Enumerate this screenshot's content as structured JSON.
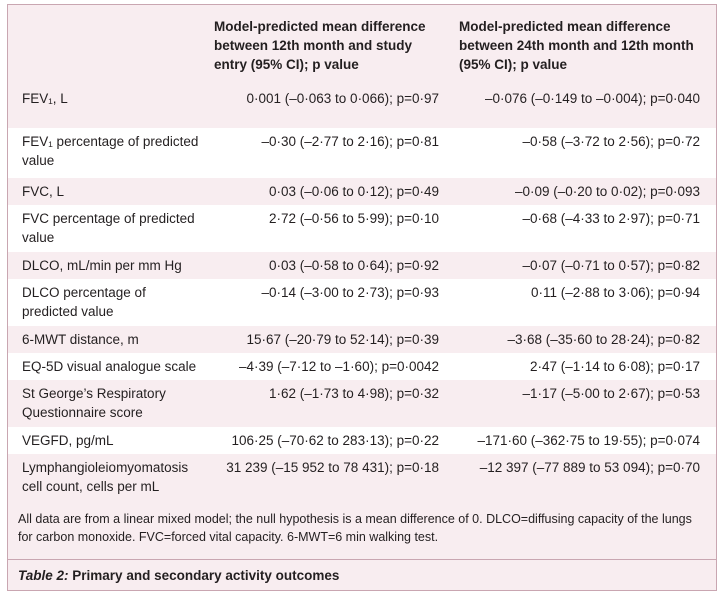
{
  "table": {
    "headers": [
      "Model-predicted mean difference between 12th month and study entry (95% CI); p value",
      "Model-predicted mean difference between 24th month and 12th month (95% CI); p value"
    ],
    "rows": [
      [
        "FEV₁, L",
        "0·001 (–0·063 to 0·066); p=0·97",
        "–0·076 (–0·149 to –0·004); p=0·040"
      ],
      [
        "FEV₁ percentage of predicted value",
        "–0·30 (–2·77 to 2·16); p=0·81",
        "–0·58 (–3·72 to 2·56); p=0·72"
      ],
      [
        "FVC, L",
        "0·03 (–0·06 to 0·12); p=0·49",
        "–0·09 (–0·20 to 0·02); p=0·093"
      ],
      [
        "FVC percentage of predicted value",
        "2·72 (–0·56 to 5·99); p=0·10",
        "–0·68 (–4·33 to 2·97); p=0·71"
      ],
      [
        "DLCO, mL/min per mm Hg",
        "0·03 (–0·58 to 0·64); p=0·92",
        "–0·07 (–0·71 to 0·57); p=0·82"
      ],
      [
        "DLCO percentage of predicted value",
        "–0·14 (–3·00 to 2·73); p=0·93",
        "0·11 (–2·88 to 3·06); p=0·94"
      ],
      [
        "6-MWT distance, m",
        "15·67 (–20·79 to 52·14); p=0·39",
        "–3·68 (–35·60 to 28·24); p=0·82"
      ],
      [
        "EQ-5D visual analogue scale",
        "–4·39 (–7·12 to –1·60); p=0·0042",
        "2·47 (–1·14 to 6·08); p=0·17"
      ],
      [
        "St George’s Respiratory Questionnaire score",
        "1·62 (–1·73 to 4·98); p=0·32",
        "–1·17 (–5·00 to 2·67); p=0·53"
      ],
      [
        "VEGFD, pg/mL",
        "106·25 (–70·62 to 283·13); p=0·22",
        "–171·60 (–362·75 to 19·55); p=0·074"
      ],
      [
        "Lymphangioleiomyomatosis cell count, cells per mL",
        "31 239 (–15 952 to 78 431); p=0·18",
        "–12 397 (–77 889 to 53 094); p=0·70"
      ]
    ],
    "footnote": "All data are from a linear mixed model; the null hypothesis is a mean difference of 0. DLCO=diffusing capacity of the lungs for carbon monoxide. FVC=forced vital capacity. 6-MWT=6 min walking test.",
    "caption_label": "Table 2:",
    "caption": "Primary and secondary activity outcomes"
  }
}
